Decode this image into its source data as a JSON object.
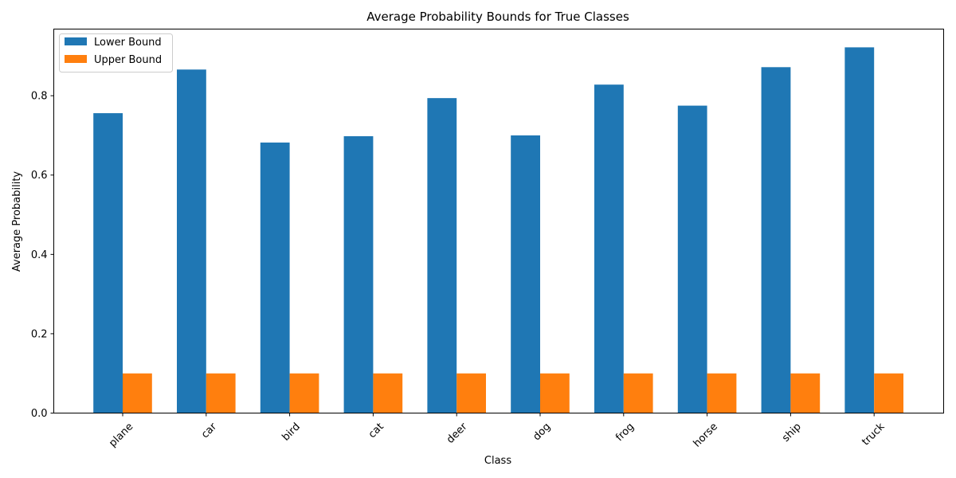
{
  "chart_data": {
    "type": "bar",
    "title": "Average Probability Bounds for True Classes",
    "xlabel": "Class",
    "ylabel": "Average Probability",
    "categories": [
      "plane",
      "car",
      "bird",
      "cat",
      "deer",
      "dog",
      "frog",
      "horse",
      "ship",
      "truck"
    ],
    "series": [
      {
        "name": "Lower Bound",
        "color": "#1f77b4",
        "values": [
          0.756,
          0.866,
          0.682,
          0.698,
          0.794,
          0.7,
          0.828,
          0.775,
          0.872,
          0.922
        ]
      },
      {
        "name": "Upper Bound",
        "color": "#ff7f0e",
        "values": [
          0.1,
          0.1,
          0.1,
          0.1,
          0.1,
          0.1,
          0.1,
          0.1,
          0.1,
          0.1
        ]
      }
    ],
    "ylim": [
      0,
      0.968
    ],
    "yticks": [
      0.0,
      0.2,
      0.4,
      0.6,
      0.8
    ],
    "ytick_labels": [
      "0.0",
      "0.2",
      "0.4",
      "0.6",
      "0.8"
    ],
    "grid": false,
    "legend_position": "top-left"
  }
}
